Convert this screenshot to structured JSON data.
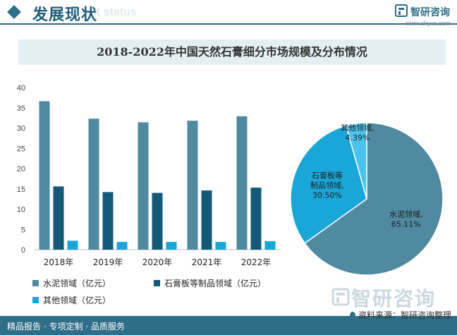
{
  "header": {
    "title": "发展现状",
    "ghost_text": "ent status",
    "logo_name": "智研咨询",
    "logo_url": "www.chyxx.com"
  },
  "chart_title": "2018-2022年中国天然石膏细分市场规模及分布情况",
  "colors": {
    "cement": "#4f8aa0",
    "board": "#145a78",
    "other": "#1aa6d8",
    "header": "#2f6e88",
    "title_band": "#e4eff4"
  },
  "chart_data": [
    {
      "type": "bar",
      "categories": [
        "2018年",
        "2019年",
        "2020年",
        "2021年",
        "2022年"
      ],
      "series": [
        {
          "name": "水泥领域（亿元）",
          "values": [
            36.6,
            32.3,
            31.4,
            31.8,
            32.9
          ]
        },
        {
          "name": "石膏板等制品领域（亿元）",
          "values": [
            15.6,
            14.2,
            14.0,
            14.6,
            15.3
          ]
        },
        {
          "name": "其他领域（亿元）",
          "values": [
            2.2,
            1.9,
            1.9,
            1.9,
            2.1
          ]
        }
      ],
      "ylim": [
        0,
        40
      ],
      "yticks": [
        0,
        5,
        10,
        15,
        20,
        25,
        30,
        35,
        40
      ],
      "grid": false,
      "legend": "bottom"
    },
    {
      "type": "pie",
      "slices": [
        {
          "label": "水泥领域",
          "percent_label": "65.11%",
          "value": 65.11
        },
        {
          "label": "石膏板等制品领域",
          "percent_label": "30.50%",
          "value": 30.5
        },
        {
          "label": "其他领域",
          "percent_label": "4.39%",
          "value": 4.39
        }
      ]
    }
  ],
  "footer": {
    "left": "精品报告 · 专项定制 · 品质服务",
    "source": "资料来源：智研咨询整理",
    "watermark": "智研咨询"
  }
}
